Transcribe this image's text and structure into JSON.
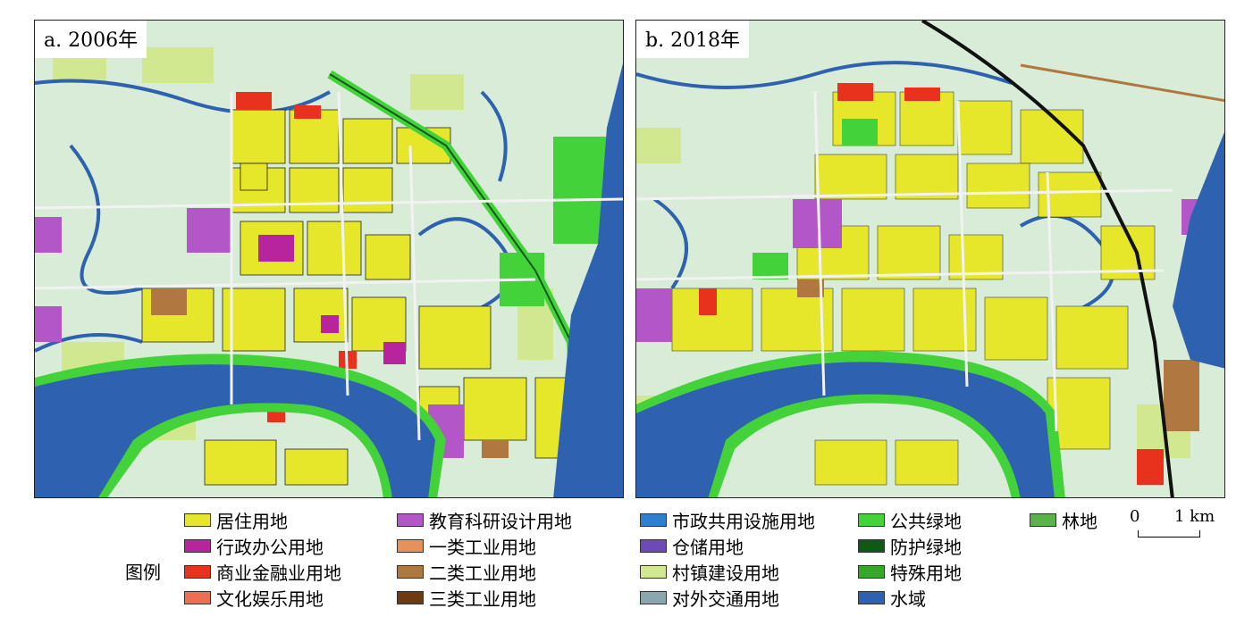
{
  "panels": [
    {
      "label": "a. 2006年"
    },
    {
      "label": "b. 2018年"
    }
  ],
  "legend": {
    "title": "图例",
    "items": [
      {
        "label": "居住用地",
        "color": "#e6e62a"
      },
      {
        "label": "行政办公用地",
        "color": "#b8249e"
      },
      {
        "label": "商业金融业用地",
        "color": "#e8321e"
      },
      {
        "label": "文化娱乐用地",
        "color": "#ee6e52"
      },
      {
        "label": "教育科研设计用地",
        "color": "#b356c8"
      },
      {
        "label": "一类工业用地",
        "color": "#e6905a"
      },
      {
        "label": "二类工业用地",
        "color": "#b07840"
      },
      {
        "label": "三类工业用地",
        "color": "#6e3a12"
      },
      {
        "label": "市政共用设施用地",
        "color": "#2f7fd0"
      },
      {
        "label": "仓储用地",
        "color": "#6e4ab8"
      },
      {
        "label": "村镇建设用地",
        "color": "#d2e890"
      },
      {
        "label": "对外交通用地",
        "color": "#8aa6ae"
      },
      {
        "label": "公共绿地",
        "color": "#44d23a"
      },
      {
        "label": "防护绿地",
        "color": "#0e5a12"
      },
      {
        "label": "特殊用地",
        "color": "#35a82a"
      },
      {
        "label": "水域",
        "color": "#2e62b0"
      },
      {
        "label": "林地",
        "color": "#5ab24a"
      }
    ]
  },
  "scale": {
    "start": "0",
    "end": "1 km"
  }
}
